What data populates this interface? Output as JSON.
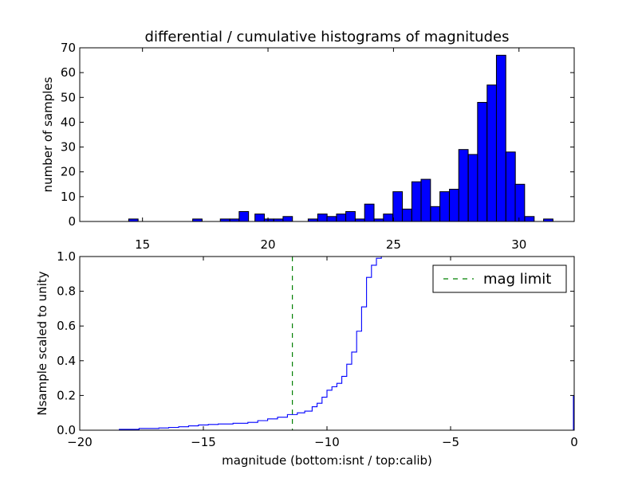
{
  "chart_data": [
    {
      "type": "bar",
      "title": "differential / cumulative histograms of magnitudes",
      "xlabel": "",
      "ylabel": "number of samples",
      "xlim": [
        12.5,
        32.2
      ],
      "ylim": [
        0,
        70
      ],
      "xticks": [
        15,
        20,
        25,
        30
      ],
      "yticks": [
        0,
        10,
        20,
        30,
        40,
        50,
        60,
        70
      ],
      "bin_width": 0.375,
      "bin_left_edges": [
        14.45,
        17.0,
        18.1,
        18.48,
        18.85,
        19.48,
        19.85,
        20.23,
        20.6,
        21.6,
        21.98,
        22.35,
        22.73,
        23.1,
        23.48,
        23.85,
        24.23,
        24.6,
        24.98,
        25.35,
        25.73,
        26.1,
        26.48,
        26.85,
        27.23,
        27.6,
        27.98,
        28.35,
        28.73,
        29.1,
        29.48,
        29.85,
        30.23,
        30.98
      ],
      "values": [
        1,
        1,
        1,
        1,
        4,
        3,
        1,
        1,
        2,
        1,
        3,
        2,
        3,
        4,
        1,
        7,
        1,
        3,
        12,
        5,
        16,
        17,
        6,
        12,
        13,
        29,
        27,
        48,
        55,
        67,
        28,
        15,
        2,
        1
      ],
      "bar_color": "#0000ff"
    },
    {
      "type": "line",
      "xlabel": "magnitude (bottom:isnt / top:calib)",
      "ylabel": "Nsample scaled to unity",
      "xlim": [
        -20,
        0
      ],
      "ylim": [
        0,
        1.0
      ],
      "xticks": [
        -20,
        -15,
        -10,
        -5,
        0
      ],
      "xtick_labels": [
        "−20",
        "−15",
        "−10",
        "−5",
        "0"
      ],
      "yticks": [
        0.0,
        0.2,
        0.4,
        0.6,
        0.8,
        1.0
      ],
      "ytick_labels": [
        "0.0",
        "0.2",
        "0.4",
        "0.6",
        "0.8",
        "1.0"
      ],
      "series": [
        {
          "style": "steps",
          "color": "#0000ff",
          "x": [
            -19.0,
            -18.4,
            -17.6,
            -16.8,
            -16.4,
            -16.0,
            -15.6,
            -15.2,
            -14.8,
            -14.4,
            -13.8,
            -13.2,
            -12.8,
            -12.4,
            -12.0,
            -11.6,
            -11.2,
            -10.9,
            -10.6,
            -10.4,
            -10.2,
            -10.0,
            -9.8,
            -9.6,
            -9.4,
            -9.2,
            -9.0,
            -8.8,
            -8.6,
            -8.4,
            -8.2,
            -8.0,
            -7.8,
            -7.2,
            -0.01
          ],
          "y": [
            0.0,
            0.005,
            0.01,
            0.013,
            0.016,
            0.02,
            0.025,
            0.03,
            0.033,
            0.036,
            0.04,
            0.045,
            0.055,
            0.065,
            0.075,
            0.09,
            0.1,
            0.11,
            0.135,
            0.155,
            0.19,
            0.23,
            0.25,
            0.27,
            0.31,
            0.38,
            0.45,
            0.57,
            0.71,
            0.88,
            0.95,
            0.99,
            1.0,
            1.0,
            1.0
          ]
        },
        {
          "name": "mag limit",
          "style": "dashed-vline",
          "color": "#008000",
          "x": -11.4
        }
      ],
      "legend_position": "top-right"
    }
  ]
}
